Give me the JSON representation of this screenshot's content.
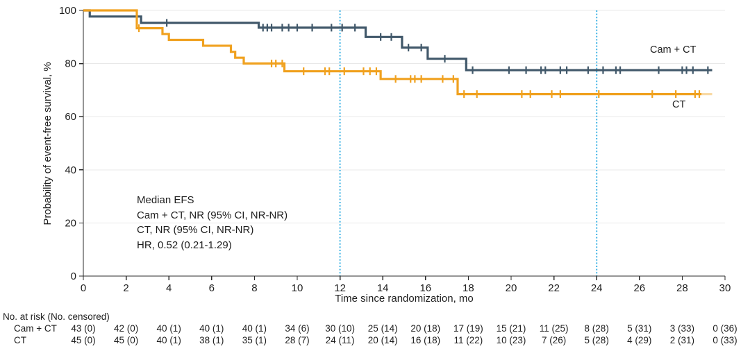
{
  "chart_data": {
    "type": "line",
    "subtype": "kaplan_meier_step",
    "title": "",
    "xlabel": "Time since randomization, mo",
    "ylabel": "Probability of event-free survival, %",
    "xlim": [
      0,
      30
    ],
    "ylim": [
      0,
      100
    ],
    "xticks": [
      0,
      2,
      4,
      6,
      8,
      10,
      12,
      14,
      16,
      18,
      20,
      22,
      24,
      26,
      28,
      30
    ],
    "yticks": [
      0,
      20,
      40,
      60,
      80,
      100
    ],
    "grid": "horizontal-light",
    "legend_position": "end-of-line-labels",
    "reference_lines_x": [
      12,
      24
    ],
    "colors": {
      "grid": "#e8e8e8",
      "axis": "#2b2b2b",
      "reference": "#3fb4e5",
      "text": "#1e1e1e",
      "camct": "#41586a",
      "ct": "#f0a11f"
    },
    "series": [
      {
        "label": "Cam + CT",
        "color": "#41586a",
        "steps": [
          [
            0,
            100
          ],
          [
            0.3,
            97.7
          ],
          [
            2.7,
            95.3
          ],
          [
            8.2,
            93.5
          ],
          [
            13.2,
            90.0
          ],
          [
            14.9,
            86.0
          ],
          [
            16.1,
            81.8
          ],
          [
            17.9,
            77.5
          ]
        ],
        "end_time": 29.4,
        "censor_times": [
          3.9,
          8.4,
          8.6,
          8.8,
          9.3,
          9.6,
          10.0,
          10.7,
          11.6,
          12.1,
          12.7,
          13.9,
          14.4,
          15.2,
          15.8,
          16.9,
          18.2,
          19.9,
          20.7,
          21.4,
          21.6,
          22.3,
          22.6,
          23.6,
          24.3,
          24.9,
          25.1,
          26.9,
          28.0,
          28.2,
          28.5,
          29.2
        ]
      },
      {
        "label": "CT",
        "color": "#f0a11f",
        "steps": [
          [
            0,
            100
          ],
          [
            2.5,
            93.3
          ],
          [
            3.7,
            91.1
          ],
          [
            4.0,
            88.9
          ],
          [
            5.6,
            86.7
          ],
          [
            6.9,
            84.4
          ],
          [
            7.1,
            82.2
          ],
          [
            7.5,
            80.0
          ],
          [
            9.4,
            77.1
          ],
          [
            13.9,
            74.2
          ],
          [
            17.5,
            68.5
          ]
        ],
        "end_time": 28.9,
        "faint_tail_end": 29.4,
        "censor_times": [
          2.6,
          8.8,
          9.0,
          9.3,
          10.3,
          11.3,
          11.5,
          12.2,
          13.1,
          13.4,
          13.7,
          14.6,
          15.3,
          15.5,
          15.8,
          16.8,
          17.3,
          17.8,
          18.4,
          20.5,
          20.9,
          21.9,
          22.3,
          24.1,
          26.6,
          27.7,
          28.6,
          28.8
        ]
      }
    ],
    "annotation": {
      "lines": [
        "Median EFS",
        "Cam + CT, NR (95% CI, NR-NR)",
        "CT, NR (95% CI, NR-NR)",
        "HR, 0.52 (0.21-1.29)"
      ]
    },
    "risk_table": {
      "header": "No. at risk (No. censored)",
      "time_points": [
        0,
        2,
        4,
        6,
        8,
        10,
        12,
        14,
        16,
        18,
        20,
        22,
        24,
        26,
        28,
        30
      ],
      "rows": [
        {
          "label": "Cam + CT",
          "values": [
            "43 (0)",
            "42 (0)",
            "40 (1)",
            "40 (1)",
            "40 (1)",
            "34 (6)",
            "30 (10)",
            "25 (14)",
            "20 (18)",
            "17 (19)",
            "15 (21)",
            "11 (25)",
            "8 (28)",
            "5 (31)",
            "3 (33)",
            "0 (36)"
          ]
        },
        {
          "label": "CT",
          "values": [
            "45 (0)",
            "45 (0)",
            "40 (1)",
            "38 (1)",
            "35 (1)",
            "28 (7)",
            "24 (11)",
            "20 (14)",
            "16 (18)",
            "11 (22)",
            "10 (23)",
            "7 (26)",
            "5 (28)",
            "4 (29)",
            "2 (31)",
            "0 (33)"
          ]
        }
      ]
    }
  }
}
